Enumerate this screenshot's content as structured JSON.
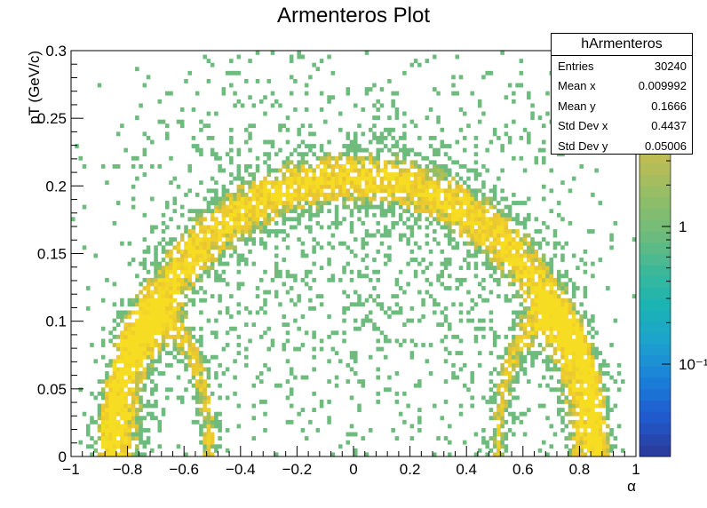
{
  "chart_data": {
    "type": "heatmap",
    "title": "Armenteros Plot",
    "xlabel": "α",
    "ylabel": "pT (GeV/c)",
    "xlim": [
      -1,
      1
    ],
    "ylim": [
      0,
      0.3
    ],
    "x_ticks": [
      "−1",
      "−0.8",
      "−0.6",
      "−0.4",
      "−0.2",
      "0",
      "0.2",
      "0.4",
      "0.6",
      "0.8",
      "1"
    ],
    "y_ticks": [
      "0",
      "0.05",
      "0.1",
      "0.15",
      "0.2",
      "0.25",
      "0.3"
    ],
    "z_scale": "log",
    "z_ticks": [
      "1",
      "10⁻¹"
    ],
    "grid": false,
    "colors": {
      "low": "#2a3ea0",
      "mid": "#19b3b5",
      "green": "#6dbb7d",
      "high": "#f6dd22"
    },
    "stats": {
      "name": "hArmenteros",
      "rows": [
        {
          "label": "Entries",
          "value": "30240"
        },
        {
          "label": "Mean x",
          "value": "0.009992"
        },
        {
          "label": "Mean y",
          "value": "0.1666"
        },
        {
          "label": "Std Dev x",
          "value": "0.4437"
        },
        {
          "label": "Std Dev y",
          "value": "0.05006"
        }
      ]
    }
  }
}
